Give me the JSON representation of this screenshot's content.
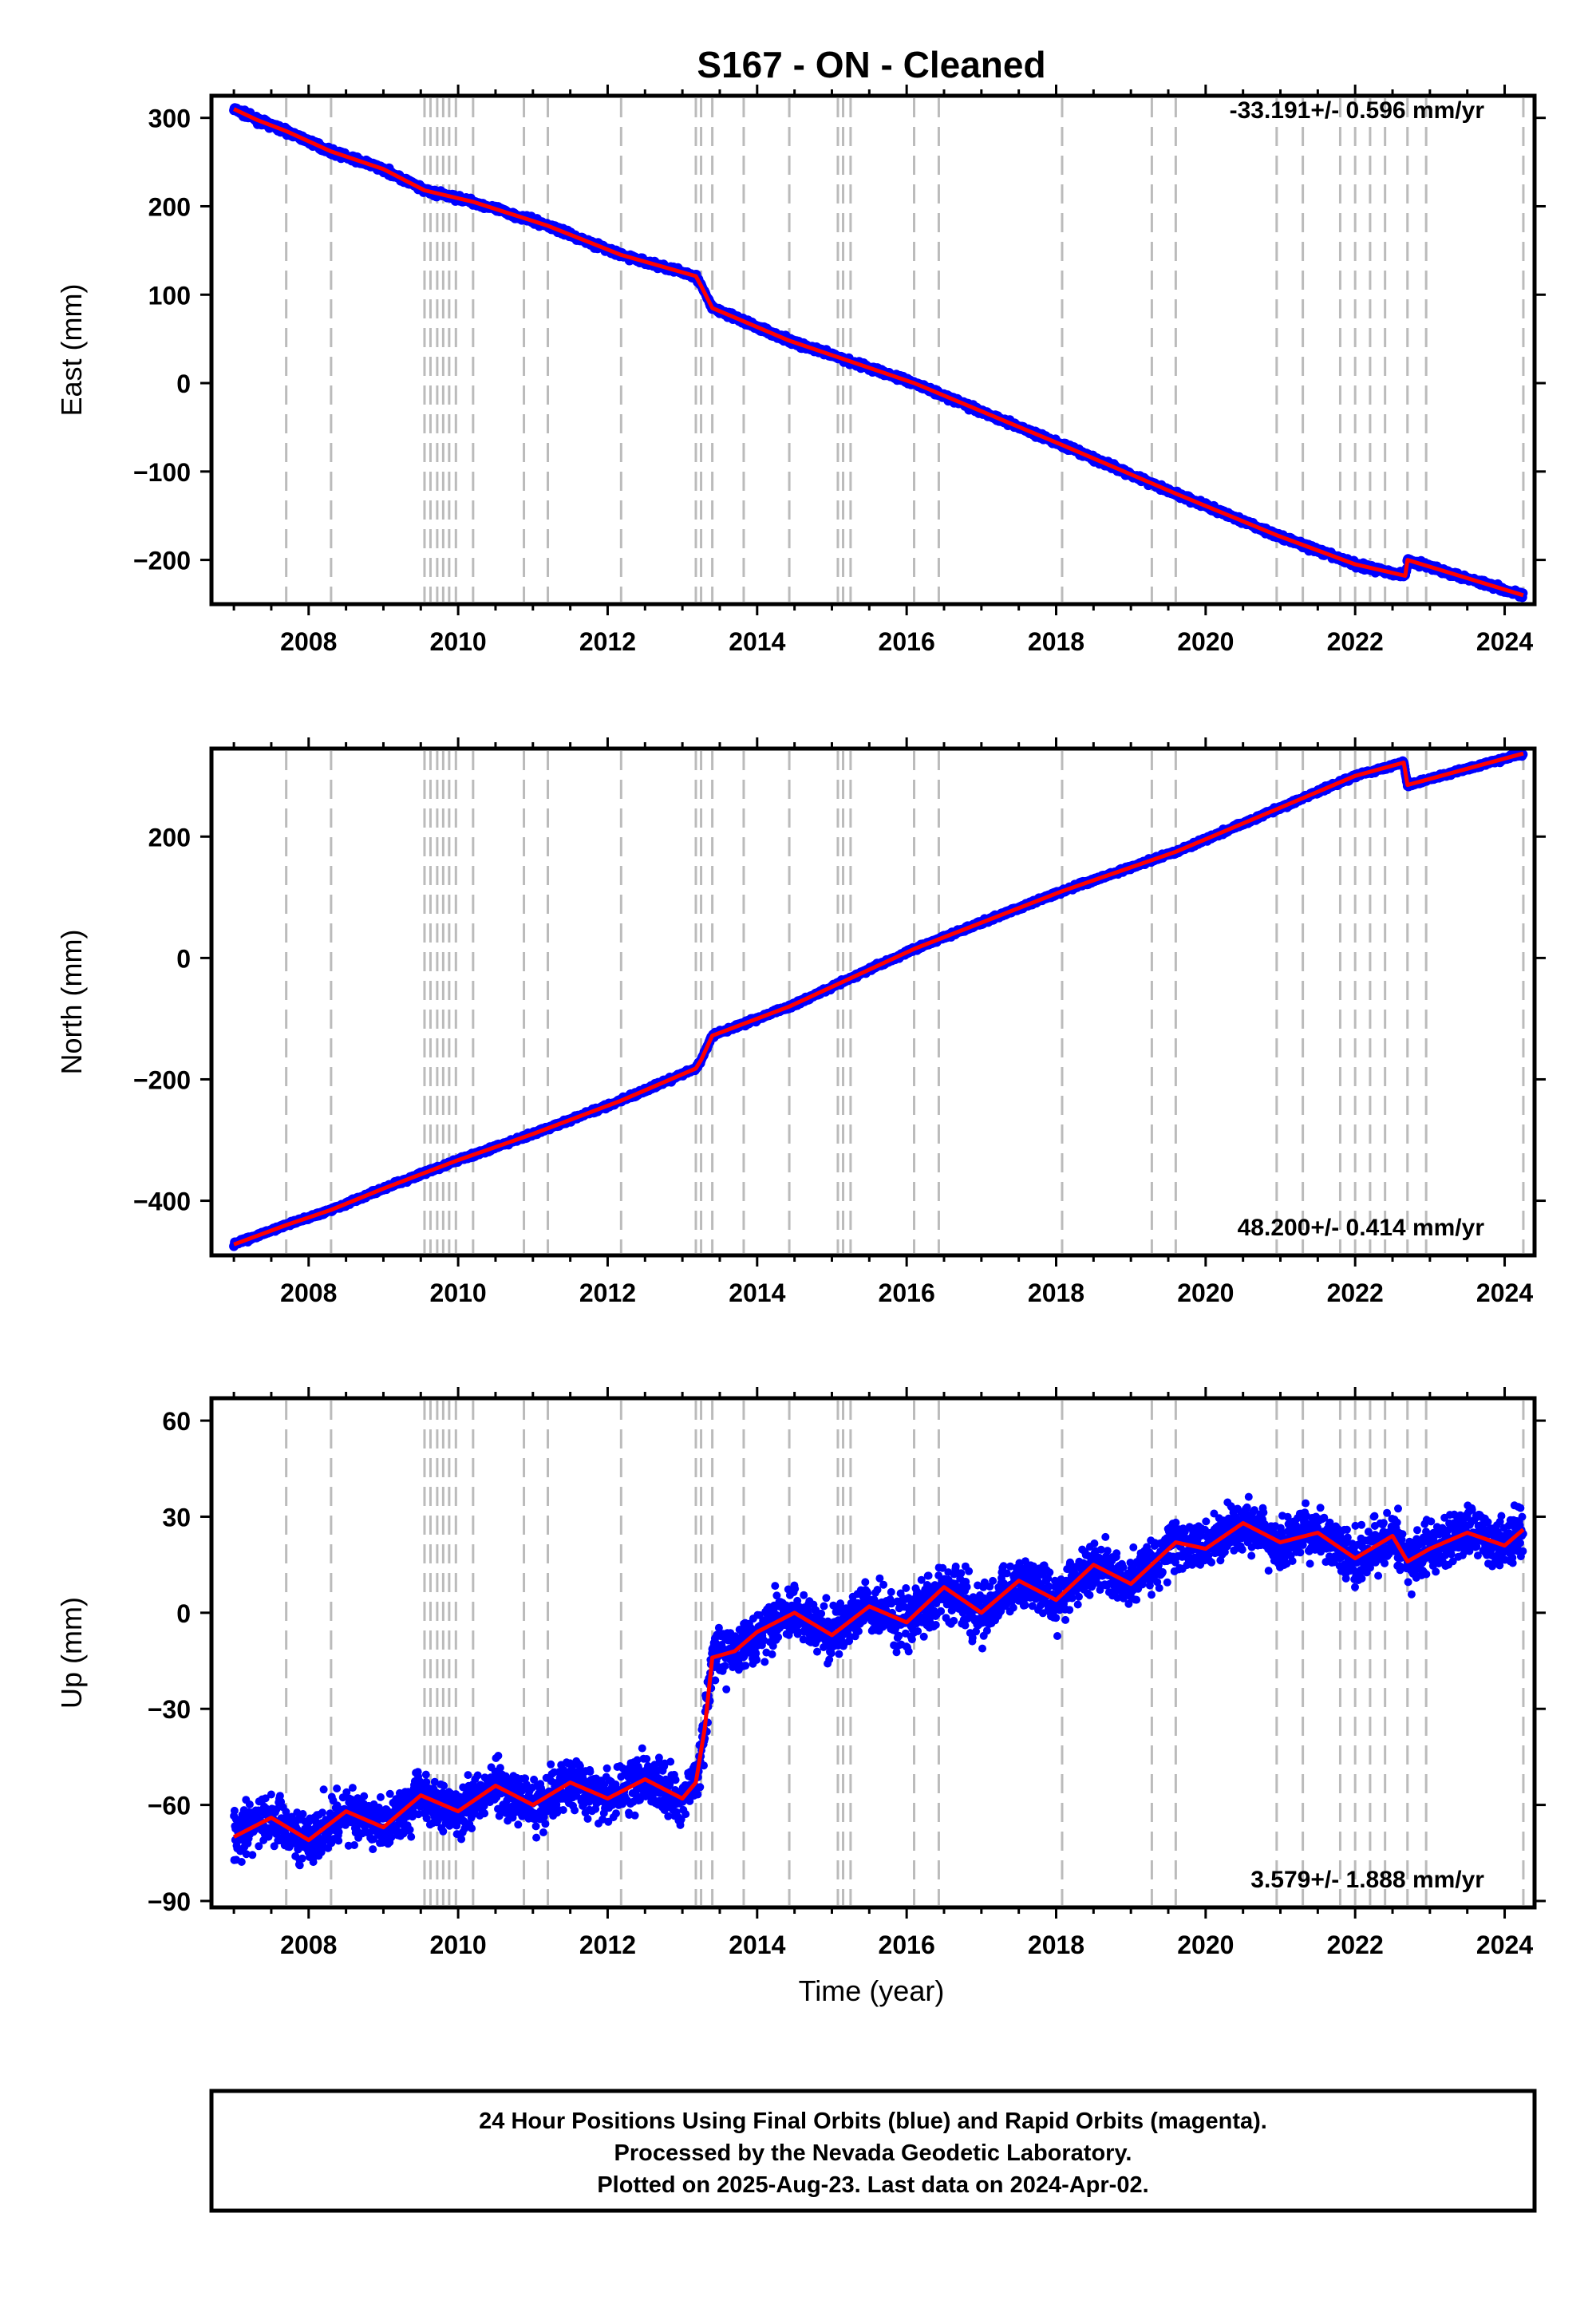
{
  "title": "S167  - ON - Cleaned",
  "colors": {
    "points": "#0000ff",
    "model": "#ff0000",
    "event_lines": "#bbbbbb",
    "frame": "#000000"
  },
  "xlabel": "Time (year)",
  "footer": {
    "line1": "24 Hour Positions Using Final Orbits (blue) and Rapid Orbits (magenta).",
    "line2": "Processed by the Nevada Geodetic Laboratory.",
    "line3": "Plotted on 2025-Aug-23. Last data on 2024-Apr-02."
  },
  "chart_data": [
    {
      "type": "scatter",
      "ylabel": "East (mm)",
      "rate_label": "-33.191+/- 0.596 mm/yr",
      "rate_position": "top-right",
      "xlim": [
        2006.7,
        2024.4
      ],
      "ylim": [
        -250,
        325
      ],
      "xticks": [
        2008,
        2010,
        2012,
        2014,
        2016,
        2018,
        2020,
        2022,
        2024
      ],
      "yticks": [
        -200,
        -100,
        0,
        100,
        200,
        300
      ],
      "ytick_labels": [
        "−200",
        "−100",
        "0",
        "100",
        "200",
        "300"
      ],
      "event_lines": [
        2007.7,
        2008.3,
        2009.55,
        2009.63,
        2009.72,
        2009.8,
        2009.88,
        2009.97,
        2010.2,
        2010.88,
        2011.2,
        2012.18,
        2013.18,
        2013.25,
        2013.4,
        2013.82,
        2014.43,
        2015.08,
        2015.15,
        2015.25,
        2016.1,
        2016.43,
        2018.08,
        2019.28,
        2019.6,
        2020.95,
        2021.3,
        2021.8,
        2022.0,
        2022.2,
        2022.4,
        2022.7,
        2022.95,
        2024.25
      ],
      "series": [
        {
          "x": [
            2007.0,
            2007.3,
            2007.7,
            2008.3,
            2009.0,
            2009.55,
            2010.2,
            2011.2,
            2012.18,
            2013.18,
            2013.25,
            2013.4,
            2014.43,
            2016.1,
            2018.08,
            2019.6,
            2020.95,
            2022.0,
            2022.67,
            2022.7,
            2024.25
          ],
          "y": [
            310,
            298,
            285,
            262,
            242,
            218,
            205,
            178,
            145,
            121,
            110,
            85,
            48,
            0,
            -70,
            -125,
            -172,
            -205,
            -218,
            -200,
            -240
          ]
        }
      ]
    },
    {
      "type": "scatter",
      "ylabel": "North (mm)",
      "rate_label": "48.200+/- 0.414 mm/yr",
      "rate_position": "bottom-right",
      "xlim": [
        2006.7,
        2024.4
      ],
      "ylim": [
        -490,
        345
      ],
      "xticks": [
        2008,
        2010,
        2012,
        2014,
        2016,
        2018,
        2020,
        2022,
        2024
      ],
      "yticks": [
        -400,
        -200,
        0,
        200
      ],
      "ytick_labels": [
        "−400",
        "−200",
        "0",
        "200"
      ],
      "event_lines": [
        2007.7,
        2008.3,
        2009.55,
        2009.63,
        2009.72,
        2009.8,
        2009.88,
        2009.97,
        2010.2,
        2010.88,
        2011.2,
        2012.18,
        2013.18,
        2013.25,
        2013.4,
        2013.82,
        2014.43,
        2015.08,
        2015.15,
        2015.25,
        2016.1,
        2016.43,
        2018.08,
        2019.28,
        2019.6,
        2020.95,
        2021.3,
        2021.8,
        2022.0,
        2022.2,
        2022.4,
        2022.7,
        2022.95,
        2024.25
      ],
      "series": [
        {
          "x": [
            2007.0,
            2007.7,
            2008.3,
            2009.0,
            2010.0,
            2011.0,
            2012.18,
            2013.18,
            2013.25,
            2013.4,
            2014.43,
            2016.1,
            2018.08,
            2019.6,
            2020.95,
            2022.0,
            2022.65,
            2022.7,
            2024.25
          ],
          "y": [
            -472,
            -440,
            -415,
            -380,
            -333,
            -290,
            -235,
            -182,
            -168,
            -128,
            -80,
            15,
            110,
            175,
            245,
            300,
            322,
            285,
            337
          ]
        }
      ]
    },
    {
      "type": "scatter",
      "ylabel": "Up (mm)",
      "rate_label": "3.579+/- 1.888 mm/yr",
      "rate_position": "bottom-right",
      "xlim": [
        2006.7,
        2024.4
      ],
      "ylim": [
        -92,
        67
      ],
      "xticks": [
        2008,
        2010,
        2012,
        2014,
        2016,
        2018,
        2020,
        2022,
        2024
      ],
      "yticks": [
        -90,
        -60,
        -30,
        0,
        30,
        60
      ],
      "ytick_labels": [
        "−90",
        "−60",
        "−30",
        "0",
        "30",
        "60"
      ],
      "event_lines": [
        2007.7,
        2008.3,
        2009.55,
        2009.63,
        2009.72,
        2009.8,
        2009.88,
        2009.97,
        2010.2,
        2010.88,
        2011.2,
        2012.18,
        2013.18,
        2013.25,
        2013.4,
        2013.82,
        2014.43,
        2015.08,
        2015.15,
        2015.25,
        2016.1,
        2016.43,
        2018.08,
        2019.28,
        2019.6,
        2020.95,
        2021.3,
        2021.8,
        2022.0,
        2022.2,
        2022.4,
        2022.7,
        2022.95,
        2024.25
      ],
      "series": [
        {
          "x": [
            2007.0,
            2007.5,
            2008.0,
            2008.5,
            2009.0,
            2009.5,
            2010.0,
            2010.5,
            2011.0,
            2011.5,
            2012.0,
            2012.5,
            2013.0,
            2013.18,
            2013.3,
            2013.4,
            2013.7,
            2014.0,
            2014.5,
            2015.0,
            2015.5,
            2016.0,
            2016.5,
            2017.0,
            2017.5,
            2018.0,
            2018.5,
            2019.0,
            2019.6,
            2020.0,
            2020.5,
            2021.0,
            2021.5,
            2022.0,
            2022.5,
            2022.7,
            2023.0,
            2023.5,
            2024.0,
            2024.25
          ],
          "y": [
            -70,
            -64,
            -71,
            -62,
            -67,
            -57,
            -62,
            -54,
            -60,
            -53,
            -58,
            -52,
            -58,
            -53,
            -36,
            -14,
            -12,
            -6,
            0,
            -7,
            2,
            -3,
            8,
            0,
            10,
            4,
            15,
            9,
            22,
            20,
            28,
            22,
            25,
            17,
            24,
            16,
            20,
            25,
            21,
            26
          ]
        }
      ]
    }
  ]
}
